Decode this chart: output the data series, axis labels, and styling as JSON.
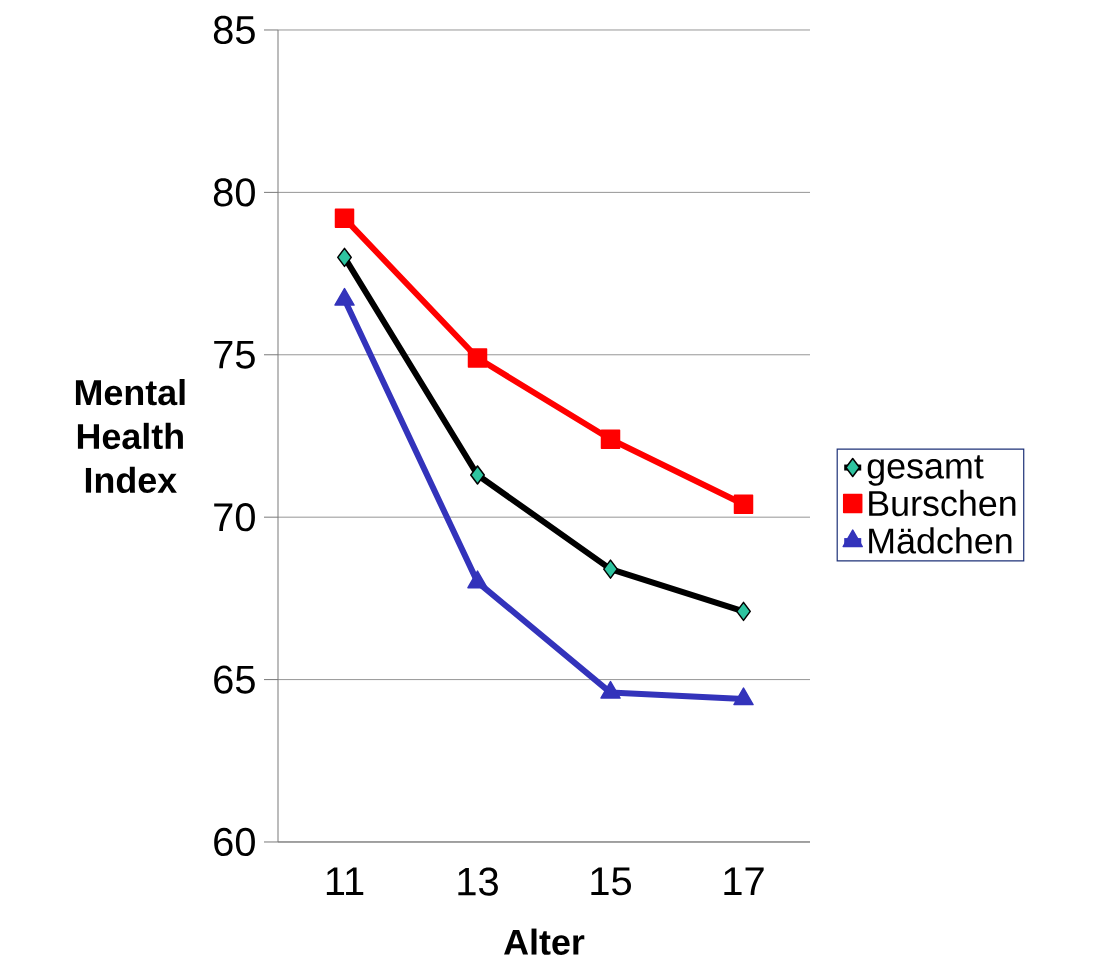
{
  "chart_data": {
    "type": "line",
    "xlabel": "Alter",
    "ylabel": "Mental Health Index",
    "categories": [
      "11",
      "13",
      "15",
      "17"
    ],
    "series": [
      {
        "name": "gesamt",
        "color": "#000000",
        "colors": [
          "#2ec4a0",
          "#2ec4a0",
          "#2ec4a0",
          "#2ec4a0"
        ],
        "marker": "diamond",
        "values": [
          78.0,
          71.3,
          68.4,
          67.1
        ]
      },
      {
        "name": "Burschen",
        "color": "#ff0000",
        "marker": "square",
        "values": [
          79.2,
          74.9,
          72.4,
          70.4
        ]
      },
      {
        "name": "Mädchen",
        "color": "#3333bb",
        "marker": "triangle",
        "values": [
          76.7,
          68.0,
          64.6,
          64.4
        ]
      }
    ],
    "ylim": [
      60,
      85
    ],
    "yticks": [
      60,
      65,
      70,
      75,
      80,
      85
    ],
    "grid": "y",
    "legend": "right",
    "line_style": "solid"
  }
}
